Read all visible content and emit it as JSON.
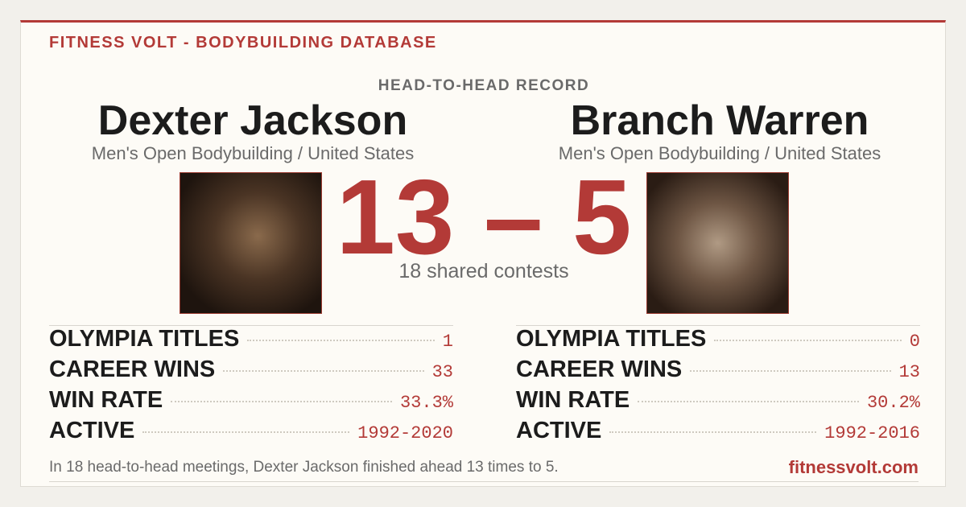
{
  "header": {
    "title": "FITNESS VOLT - BODYBUILDING DATABASE"
  },
  "heading": "HEAD-TO-HEAD RECORD",
  "score": "13 – 5",
  "shared": "18 shared contests",
  "players": [
    {
      "name": "Dexter Jackson",
      "category": "Men's Open Bodybuilding / United States",
      "stats": [
        {
          "label": "OLYMPIA TITLES",
          "value": "1"
        },
        {
          "label": "CAREER WINS",
          "value": "33"
        },
        {
          "label": "WIN RATE",
          "value": "33.3%"
        },
        {
          "label": "ACTIVE",
          "value": "1992-2020"
        }
      ]
    },
    {
      "name": "Branch Warren",
      "category": "Men's Open Bodybuilding / United States",
      "stats": [
        {
          "label": "OLYMPIA TITLES",
          "value": "0"
        },
        {
          "label": "CAREER WINS",
          "value": "13"
        },
        {
          "label": "WIN RATE",
          "value": "30.2%"
        },
        {
          "label": "ACTIVE",
          "value": "1992-2016"
        }
      ]
    }
  ],
  "footer": {
    "text": "In 18 head-to-head meetings, Dexter Jackson finished ahead 13 times to 5.",
    "site": "fitnessvolt.com"
  }
}
